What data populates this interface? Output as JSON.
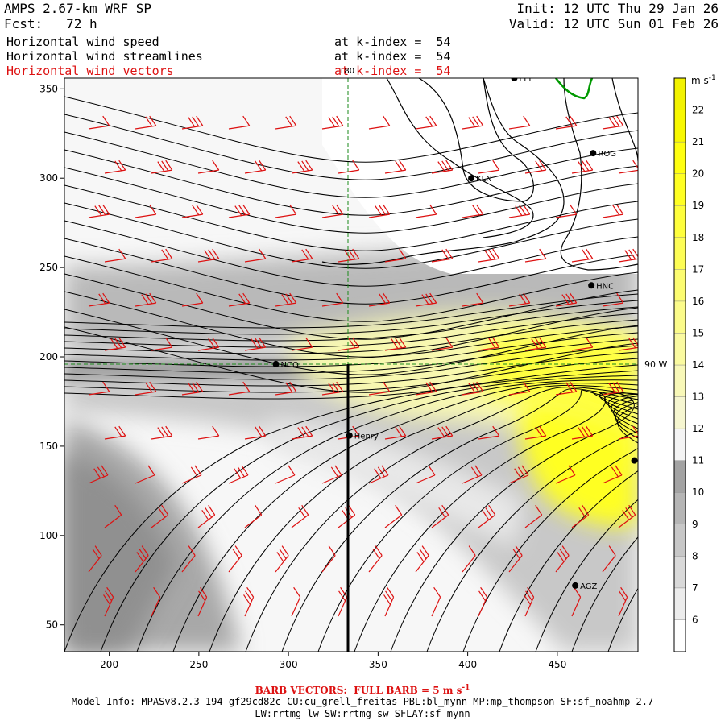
{
  "header": {
    "model_name": "AMPS 2.67-km WRF SP",
    "forecast": "Fcst:   72 h",
    "init": "Init: 12 UTC Thu 29 Jan 26",
    "valid": "Valid: 12 UTC Sun 01 Feb 26",
    "fields": [
      {
        "name": "Horizontal wind speed",
        "level": "at k-index =  54",
        "color": "#000000"
      },
      {
        "name": "Horizontal wind streamlines",
        "level": "at k-index =  54",
        "color": "#000000"
      },
      {
        "name": "Horizontal wind vectors",
        "level": "at k-index =  54",
        "color": "#dd1111"
      }
    ]
  },
  "map": {
    "x_ticks": [
      "200",
      "250",
      "300",
      "350",
      "400",
      "450"
    ],
    "y_ticks": [
      "50",
      "100",
      "150",
      "200",
      "250",
      "300",
      "350"
    ],
    "x_range": [
      175,
      495
    ],
    "y_range": [
      35,
      356
    ],
    "meridian_label": "180",
    "parallel_label": "90 W",
    "stations": [
      {
        "name": "LYT",
        "x": 426,
        "y": 356
      },
      {
        "name": "ROG",
        "x": 470,
        "y": 314
      },
      {
        "name": "KLN",
        "x": 402,
        "y": 300
      },
      {
        "name": "HNC",
        "x": 469,
        "y": 240
      },
      {
        "name": "NCO",
        "x": 293,
        "y": 196
      },
      {
        "name": "Henry",
        "x": 334,
        "y": 156
      },
      {
        "name": "AGZ",
        "x": 460,
        "y": 72
      },
      {
        "name": "",
        "x": 493,
        "y": 142
      }
    ],
    "cross_section_x": 334,
    "colors": {
      "streamline": "#000000",
      "barb": "#dd1111",
      "meridian": "#1a8a1a",
      "coast_green": "#009900"
    }
  },
  "colorbar": {
    "unit": "m s",
    "unit_exp": "-1",
    "levels": [
      "6",
      "7",
      "8",
      "9",
      "10",
      "11",
      "12",
      "13",
      "14",
      "15",
      "16",
      "17",
      "18",
      "19",
      "20",
      "21",
      "22"
    ],
    "colors": [
      "#ffffff",
      "#ececec",
      "#d9d9d9",
      "#c7c7c7",
      "#b5b5b5",
      "#a3a3a3",
      "#f4f4f4",
      "#f6f6d0",
      "#f8f8b8",
      "#fafaa0",
      "#fbfb8a",
      "#fcfc70",
      "#fdfd55",
      "#fefe3c",
      "#ffff22",
      "#ffff10",
      "#f8f800",
      "#f2f200"
    ]
  },
  "footer": {
    "barb_note_prefix": "BARB VECTORS:  FULL BARB = 5 m s",
    "barb_note_exp": "-1",
    "model_info_1": "Model Info: MPASv8.2.3-194-gf29cd82c CU:cu_grell_freitas PBL:bl_mynn MP:mp_thompson SF:sf_noahmp 2.7",
    "model_info_2": "LW:rrtmg_lw SW:rrtmg_sw SFLAY:sf_mynn"
  }
}
